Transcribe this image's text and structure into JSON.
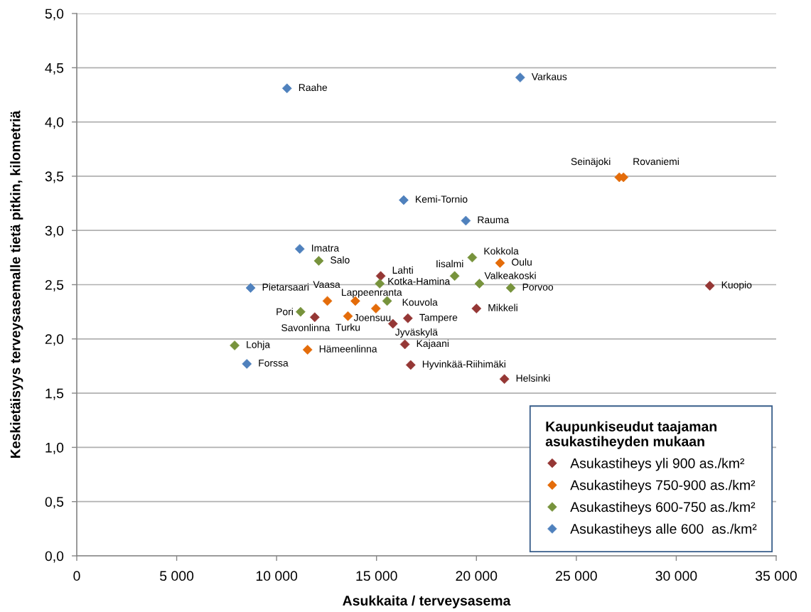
{
  "chart_data": {
    "type": "scatter",
    "xlabel": "Asukkaita / terveysasema",
    "ylabel": "Keskietäisyys terveysasemalle tietä pitkin, kilometriä",
    "legend_title": "Kaupunkiseudut taajaman\nasukastiheyden mukaan",
    "legend": "bottom right",
    "grid": "y",
    "marker": "diamond",
    "xlim": [
      0,
      35000
    ],
    "xticks": [
      0,
      {
        "value": 5000,
        "label": "5 000"
      },
      {
        "value": 10000,
        "label": "10 000"
      },
      {
        "value": 15000,
        "label": "15 000"
      },
      {
        "value": 20000,
        "label": "20 000"
      },
      {
        "value": 25000,
        "label": "25 000"
      },
      {
        "value": 30000,
        "label": "30 000"
      },
      {
        "value": 35000,
        "label": "35 000"
      }
    ],
    "ylim": [
      0,
      5
    ],
    "yticks": [
      {
        "value": 0,
        "label": "0,0"
      },
      {
        "value": 0.5,
        "label": "0,5"
      },
      {
        "value": 1,
        "label": "1,0"
      },
      {
        "value": 1.5,
        "label": "1,5"
      },
      {
        "value": 2,
        "label": "2,0"
      },
      {
        "value": 2.5,
        "label": "2,5"
      },
      {
        "value": 3,
        "label": "3,0"
      },
      {
        "value": 3.5,
        "label": "3,5"
      },
      {
        "value": 4,
        "label": "4,0"
      },
      {
        "value": 4.5,
        "label": "4,5"
      },
      {
        "value": 5,
        "label": "5,0"
      }
    ],
    "series": [
      {
        "name": "Asukastiheys yli 900 as./km²",
        "color": "#953735",
        "x": [
          15210,
          11910,
          16570,
          15820,
          20000,
          16420,
          16710,
          21400,
          31680
        ],
        "values": [
          2.58,
          2.2,
          2.19,
          2.14,
          2.28,
          1.95,
          1.76,
          1.63,
          2.49
        ]
      },
      {
        "name": "Asukastiheys 750-900 as./km²",
        "color": "#e46c0a",
        "x": [
          12540,
          13940,
          14970,
          13570,
          11550,
          21180,
          27150,
          27360
        ],
        "values": [
          2.35,
          2.35,
          2.28,
          2.21,
          1.9,
          2.7,
          3.49,
          3.49
        ]
      },
      {
        "name": "Asukastiheys 600-750 as./km²",
        "color": "#77933c",
        "x": [
          12110,
          15160,
          15530,
          11200,
          7900,
          18910,
          19790,
          20150,
          21720
        ],
        "values": [
          2.72,
          2.51,
          2.35,
          2.25,
          1.94,
          2.58,
          2.75,
          2.51,
          2.47
        ]
      },
      {
        "name": "Asukastiheys alle 600  as./km²",
        "color": "#4f81bd",
        "x": [
          10520,
          22190,
          16360,
          19470,
          11160,
          8700,
          8510
        ],
        "values": [
          4.31,
          4.41,
          3.28,
          3.09,
          2.83,
          2.47,
          1.77
        ]
      }
    ],
    "annotations": [
      {
        "text": "Lahti",
        "x": 15210,
        "y": 2.58
      },
      {
        "text": "Savonlinna",
        "x": 11910,
        "y": 2.2
      },
      {
        "text": "Tampere",
        "x": 16570,
        "y": 2.19
      },
      {
        "text": "Jyväskylä",
        "x": 15820,
        "y": 2.14
      },
      {
        "text": "Mikkeli",
        "x": 20000,
        "y": 2.28
      },
      {
        "text": "Kajaani",
        "x": 16420,
        "y": 1.95
      },
      {
        "text": "Hyvinkää-Riihimäki",
        "x": 16710,
        "y": 1.76
      },
      {
        "text": "Helsinki",
        "x": 21400,
        "y": 1.63
      },
      {
        "text": "Kuopio",
        "x": 31680,
        "y": 2.49
      },
      {
        "text": "Vaasa",
        "x": 12540,
        "y": 2.35
      },
      {
        "text": "Lappeenranta",
        "x": 13940,
        "y": 2.35
      },
      {
        "text": "Joensuu",
        "x": 14970,
        "y": 2.28
      },
      {
        "text": "Turku",
        "x": 13570,
        "y": 2.21
      },
      {
        "text": "Hämeenlinna",
        "x": 11550,
        "y": 1.9
      },
      {
        "text": "Oulu",
        "x": 21180,
        "y": 2.7
      },
      {
        "text": "Seinäjoki",
        "x": 27150,
        "y": 3.49
      },
      {
        "text": "Rovaniemi",
        "x": 27360,
        "y": 3.49
      },
      {
        "text": "Salo",
        "x": 12110,
        "y": 2.72
      },
      {
        "text": "Kotka-Hamina",
        "x": 15160,
        "y": 2.51
      },
      {
        "text": "Kouvola",
        "x": 15530,
        "y": 2.35
      },
      {
        "text": "Pori",
        "x": 11200,
        "y": 2.25
      },
      {
        "text": "Lohja",
        "x": 7900,
        "y": 1.94
      },
      {
        "text": "Iisalmi",
        "x": 18910,
        "y": 2.58
      },
      {
        "text": "Kokkola",
        "x": 19790,
        "y": 2.75
      },
      {
        "text": "Valkeakoski",
        "x": 20150,
        "y": 2.51
      },
      {
        "text": "Porvoo",
        "x": 21720,
        "y": 2.47
      },
      {
        "text": "Raahe",
        "x": 10520,
        "y": 4.31
      },
      {
        "text": "Varkaus",
        "x": 22190,
        "y": 4.41
      },
      {
        "text": "Kemi-Tornio",
        "x": 16360,
        "y": 3.28
      },
      {
        "text": "Rauma",
        "x": 19470,
        "y": 3.09
      },
      {
        "text": "Imatra",
        "x": 11160,
        "y": 2.83
      },
      {
        "text": "Pietarsaari",
        "x": 8700,
        "y": 2.47
      },
      {
        "text": "Forssa",
        "x": 8510,
        "y": 1.77
      }
    ]
  }
}
